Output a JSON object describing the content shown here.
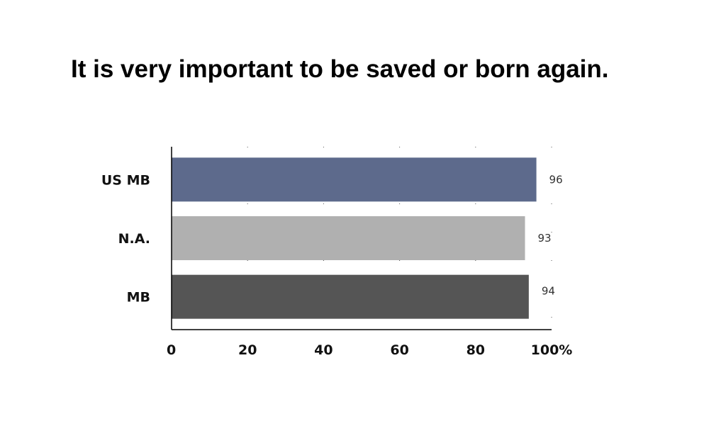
{
  "chart_data": {
    "type": "bar",
    "orientation": "horizontal",
    "title": "It is very important to be saved or born again.",
    "categories": [
      "US MB",
      "N.A.",
      "MB"
    ],
    "values": [
      96,
      93,
      94
    ],
    "data_labels": [
      "96",
      "93",
      "94"
    ],
    "colors": [
      "#5d6a8c",
      "#b0b0b0",
      "#555555"
    ],
    "xlim": [
      0,
      100
    ],
    "x_ticks": [
      {
        "value": 0,
        "label": "0"
      },
      {
        "value": 20,
        "label": "20"
      },
      {
        "value": 40,
        "label": "40"
      },
      {
        "value": 60,
        "label": "60"
      },
      {
        "value": 80,
        "label": "80"
      },
      {
        "value": 100,
        "label": "100%"
      }
    ],
    "grid": "dotted-vertical",
    "legend": "none"
  }
}
